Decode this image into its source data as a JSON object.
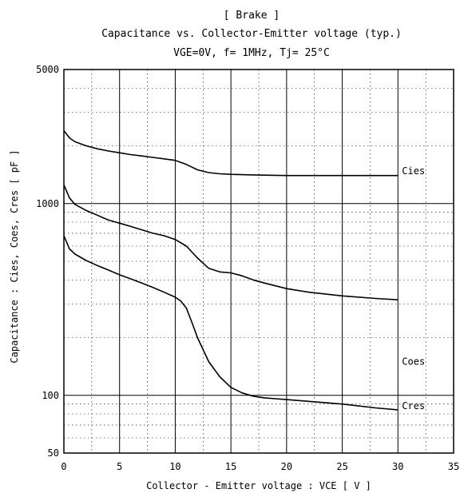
{
  "chart_data": {
    "type": "line",
    "title": "[ Brake ]",
    "subtitle": "Capacitance vs. Collector-Emitter voltage (typ.)",
    "conditions": "VGE=0V, f= 1MHz, Tj= 25°C",
    "xlabel": "Collector - Emitter voltage : VCE [ V ]",
    "ylabel": "Capacitance : Cies, Coes, Cres [ pF ]",
    "xlim": [
      0,
      35
    ],
    "ylim": [
      50,
      5000
    ],
    "yscale": "log",
    "grid": true,
    "x_ticks": [
      "0",
      "5",
      "10",
      "15",
      "20",
      "25",
      "30",
      "35"
    ],
    "y_ticks": [
      {
        "value": 50,
        "label": "50"
      },
      {
        "value": 100,
        "label": "100"
      },
      {
        "value": 1000,
        "label": "1000"
      },
      {
        "value": 5000,
        "label": "5000"
      }
    ],
    "series": [
      {
        "name": "Cies",
        "x": [
          0,
          0.5,
          1,
          2,
          3,
          4,
          5,
          6,
          7,
          8,
          9,
          10,
          11,
          12,
          13,
          14,
          15,
          17,
          20,
          25,
          30
        ],
        "y": [
          2400,
          2200,
          2100,
          2000,
          1930,
          1880,
          1840,
          1800,
          1770,
          1740,
          1710,
          1680,
          1600,
          1500,
          1450,
          1430,
          1420,
          1410,
          1400,
          1400,
          1400
        ]
      },
      {
        "name": "Coes",
        "x": [
          0,
          0.5,
          1,
          2,
          3,
          4,
          5,
          6,
          7,
          8,
          9,
          10,
          11,
          12,
          13,
          14,
          15,
          16,
          17,
          18,
          20,
          22,
          25,
          28,
          30
        ],
        "y": [
          1250,
          1070,
          990,
          920,
          870,
          820,
          790,
          760,
          730,
          700,
          680,
          650,
          600,
          520,
          460,
          440,
          435,
          420,
          400,
          385,
          360,
          345,
          330,
          320,
          315
        ]
      },
      {
        "name": "Cres",
        "x": [
          0,
          0.5,
          1,
          2,
          3,
          4,
          5,
          6,
          7,
          8,
          9,
          10,
          10.5,
          11,
          11.5,
          12,
          13,
          14,
          15,
          16,
          17,
          18,
          19,
          20,
          22,
          25,
          28,
          30
        ],
        "y": [
          680,
          580,
          545,
          505,
          475,
          450,
          425,
          405,
          385,
          365,
          345,
          325,
          310,
          285,
          240,
          200,
          150,
          125,
          110,
          103,
          99,
          97,
          96,
          95,
          93,
          90,
          86,
          84
        ]
      }
    ]
  }
}
